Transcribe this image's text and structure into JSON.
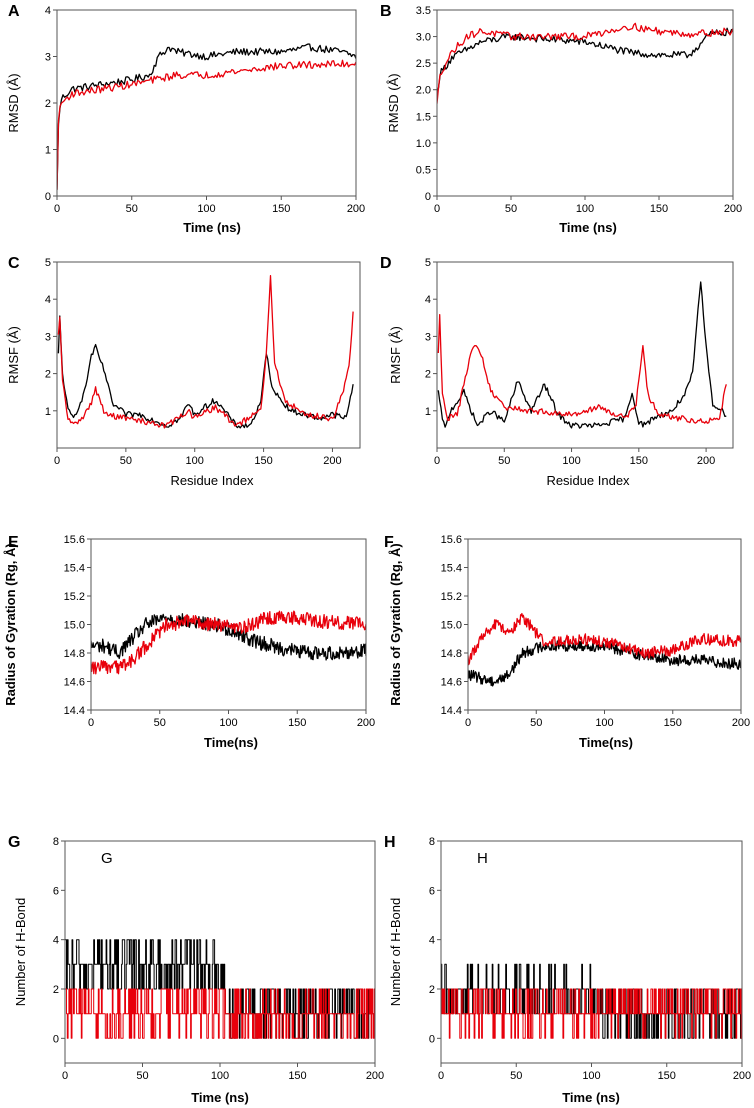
{
  "figure": {
    "colors": {
      "black": "#000000",
      "red": "#e8000b"
    }
  },
  "chart_data": [
    {
      "id": "A",
      "type": "line",
      "panel_label": "A",
      "xlabel": "Time (ns)",
      "ylabel": "RMSD (Å)",
      "xlim": [
        0,
        200
      ],
      "ylim": [
        0,
        4
      ],
      "xticks": [
        "0",
        "50",
        "100",
        "150",
        "200"
      ],
      "yticks": [
        "0",
        "1",
        "2",
        "3",
        "4"
      ],
      "series": [
        {
          "name": "black",
          "color": "#000000",
          "noise": 0.08,
          "step": 1,
          "x": [
            0,
            1,
            3,
            10,
            30,
            50,
            62,
            68,
            75,
            80,
            100,
            120,
            150,
            170,
            190,
            200
          ],
          "y": [
            0.1,
            1.6,
            2.1,
            2.3,
            2.4,
            2.5,
            2.6,
            3.0,
            3.2,
            3.1,
            3.0,
            3.1,
            3.1,
            3.2,
            3.1,
            3.0
          ]
        },
        {
          "name": "red",
          "color": "#e8000b",
          "noise": 0.08,
          "step": 1,
          "x": [
            0,
            1,
            3,
            10,
            30,
            50,
            80,
            100,
            150,
            200
          ],
          "y": [
            0.1,
            1.7,
            2.0,
            2.2,
            2.3,
            2.4,
            2.6,
            2.6,
            2.8,
            2.85
          ]
        }
      ]
    },
    {
      "id": "B",
      "type": "line",
      "panel_label": "B",
      "xlabel": "Time (ns)",
      "ylabel": "RMSD (Å)",
      "xlim": [
        0,
        200
      ],
      "ylim": [
        0,
        3.5
      ],
      "xticks": [
        "0",
        "50",
        "100",
        "150",
        "200"
      ],
      "yticks": [
        "0",
        "0.5",
        "1.0",
        "1.5",
        "2.0",
        "2.5",
        "3.0",
        "3.5"
      ],
      "series": [
        {
          "name": "black",
          "color": "#000000",
          "noise": 0.07,
          "step": 1,
          "x": [
            0,
            2,
            10,
            30,
            50,
            100,
            130,
            150,
            170,
            185,
            200
          ],
          "y": [
            1.9,
            2.3,
            2.6,
            2.9,
            3.0,
            2.9,
            2.7,
            2.65,
            2.65,
            3.05,
            3.1
          ]
        },
        {
          "name": "red",
          "color": "#e8000b",
          "noise": 0.07,
          "step": 1,
          "x": [
            0,
            2,
            10,
            20,
            30,
            50,
            100,
            130,
            150,
            170,
            200
          ],
          "y": [
            1.7,
            2.3,
            2.7,
            3.0,
            3.1,
            3.0,
            3.0,
            3.2,
            3.1,
            3.05,
            3.1
          ]
        }
      ]
    },
    {
      "id": "C",
      "type": "line",
      "panel_label": "C",
      "xlabel": "Residue Index",
      "ylabel": "RMSF (Å)",
      "xlim": [
        0,
        220
      ],
      "ylim": [
        0,
        5
      ],
      "xticks": [
        "0",
        "50",
        "100",
        "150",
        "200"
      ],
      "yticks": [
        "1",
        "2",
        "3",
        "4",
        "5"
      ],
      "yaxis_min_tick": 1,
      "series": [
        {
          "name": "black",
          "color": "#000000",
          "noise": 0.08,
          "step": 1,
          "x": [
            1,
            2,
            4,
            8,
            12,
            20,
            25,
            28,
            35,
            40,
            50,
            60,
            80,
            90,
            95,
            100,
            115,
            130,
            140,
            148,
            152,
            155,
            160,
            170,
            190,
            200,
            210,
            215
          ],
          "y": [
            2.5,
            3.5,
            2.0,
            1.0,
            0.8,
            1.5,
            2.5,
            2.7,
            2.0,
            1.2,
            0.9,
            0.9,
            0.6,
            0.8,
            1.2,
            0.9,
            1.3,
            0.6,
            0.6,
            1.2,
            2.6,
            1.8,
            1.4,
            1.0,
            0.8,
            0.9,
            0.8,
            1.7
          ]
        },
        {
          "name": "red",
          "color": "#e8000b",
          "noise": 0.08,
          "step": 1,
          "x": [
            1,
            2,
            4,
            8,
            12,
            20,
            25,
            28,
            35,
            50,
            80,
            95,
            100,
            115,
            130,
            148,
            152,
            155,
            158,
            165,
            180,
            200,
            208,
            212,
            215
          ],
          "y": [
            3.0,
            3.5,
            1.8,
            0.8,
            0.6,
            0.9,
            1.2,
            1.6,
            0.9,
            0.8,
            0.6,
            1.0,
            0.8,
            1.1,
            0.6,
            1.0,
            2.5,
            4.6,
            2.3,
            1.3,
            0.9,
            0.8,
            1.5,
            2.2,
            3.6
          ]
        }
      ]
    },
    {
      "id": "D",
      "type": "line",
      "panel_label": "D",
      "xlabel": "Residue Index",
      "ylabel": "RMSF (Å)",
      "xlim": [
        0,
        220
      ],
      "ylim": [
        0,
        5
      ],
      "xticks": [
        "0",
        "50",
        "100",
        "150",
        "200"
      ],
      "yticks": [
        "1",
        "2",
        "3",
        "4",
        "5"
      ],
      "yaxis_min_tick": 1,
      "series": [
        {
          "name": "black",
          "color": "#000000",
          "noise": 0.08,
          "step": 1,
          "x": [
            1,
            3,
            6,
            10,
            20,
            30,
            40,
            50,
            60,
            70,
            80,
            90,
            100,
            120,
            140,
            145,
            150,
            155,
            160,
            175,
            185,
            190,
            196,
            200,
            205,
            215
          ],
          "y": [
            1.5,
            1.0,
            0.5,
            1.0,
            1.5,
            0.6,
            1.0,
            0.7,
            1.8,
            1.0,
            1.7,
            0.9,
            0.6,
            0.6,
            0.8,
            1.5,
            0.7,
            0.6,
            0.8,
            1.0,
            1.5,
            2.0,
            4.5,
            2.7,
            1.2,
            0.9
          ]
        },
        {
          "name": "red",
          "color": "#e8000b",
          "noise": 0.08,
          "step": 1,
          "x": [
            1,
            2,
            4,
            8,
            15,
            25,
            28,
            33,
            40,
            50,
            70,
            100,
            120,
            140,
            148,
            153,
            157,
            165,
            180,
            200,
            210,
            215
          ],
          "y": [
            2.5,
            3.6,
            1.5,
            0.8,
            0.9,
            2.5,
            2.8,
            2.5,
            1.5,
            1.1,
            1.0,
            0.9,
            1.1,
            0.8,
            1.2,
            2.7,
            1.4,
            0.9,
            0.8,
            0.7,
            0.8,
            1.7
          ]
        }
      ]
    },
    {
      "id": "E",
      "type": "line",
      "panel_label": "E",
      "xlabel": "Time(ns)",
      "ylabel": "Radius of Gyration (Rg, Å)",
      "xlim": [
        0,
        200
      ],
      "ylim": [
        14.4,
        15.6
      ],
      "xticks": [
        "0",
        "50",
        "100",
        "150",
        "200"
      ],
      "yticks": [
        "14.4",
        "14.6",
        "14.8",
        "15.0",
        "15.2",
        "15.4",
        "15.6"
      ],
      "series": [
        {
          "name": "black",
          "color": "#000000",
          "noise": 0.05,
          "step": 0.5,
          "x": [
            0,
            10,
            20,
            30,
            40,
            55,
            70,
            90,
            105,
            120,
            140,
            160,
            180,
            200
          ],
          "y": [
            14.85,
            14.85,
            14.8,
            14.9,
            15.0,
            15.05,
            15.02,
            15.0,
            14.95,
            14.88,
            14.83,
            14.8,
            14.8,
            14.82
          ]
        },
        {
          "name": "red",
          "color": "#e8000b",
          "noise": 0.05,
          "step": 0.5,
          "x": [
            0,
            10,
            20,
            30,
            45,
            55,
            70,
            90,
            110,
            130,
            150,
            170,
            200
          ],
          "y": [
            14.7,
            14.7,
            14.7,
            14.75,
            14.9,
            15.0,
            15.02,
            15.0,
            14.98,
            15.05,
            15.05,
            15.02,
            15.0
          ]
        }
      ]
    },
    {
      "id": "F",
      "type": "line",
      "panel_label": "F",
      "xlabel": "Time(ns)",
      "ylabel": "Radius of Gyration (Rg, Å)",
      "xlim": [
        0,
        200
      ],
      "ylim": [
        14.4,
        15.6
      ],
      "xticks": [
        "0",
        "50",
        "100",
        "150",
        "200"
      ],
      "yticks": [
        "14.4",
        "14.6",
        "14.8",
        "15.0",
        "15.2",
        "15.4",
        "15.6"
      ],
      "series": [
        {
          "name": "black",
          "color": "#000000",
          "noise": 0.04,
          "step": 0.5,
          "x": [
            0,
            10,
            20,
            30,
            40,
            55,
            80,
            100,
            130,
            150,
            170,
            200
          ],
          "y": [
            14.65,
            14.62,
            14.6,
            14.65,
            14.8,
            14.85,
            14.85,
            14.85,
            14.78,
            14.75,
            14.75,
            14.72
          ]
        },
        {
          "name": "red",
          "color": "#e8000b",
          "noise": 0.04,
          "step": 0.5,
          "x": [
            0,
            10,
            20,
            30,
            40,
            45,
            55,
            80,
            100,
            130,
            150,
            170,
            200
          ],
          "y": [
            14.75,
            14.9,
            15.0,
            14.95,
            15.05,
            15.0,
            14.88,
            14.9,
            14.88,
            14.8,
            14.82,
            14.9,
            14.88
          ]
        }
      ]
    },
    {
      "id": "G",
      "type": "line",
      "panel_label": "G",
      "inset_label": "G",
      "xlabel": "Time (ns)",
      "ylabel": "Number of H-Bond",
      "xlim": [
        0,
        200
      ],
      "ylim": [
        -1,
        8
      ],
      "xticks": [
        "0",
        "50",
        "100",
        "150",
        "200"
      ],
      "yticks": [
        "0",
        "2",
        "4",
        "6",
        "8"
      ],
      "yaxis_min_tick": 0,
      "series": [
        {
          "name": "black",
          "color": "#000000",
          "noise": 1.2,
          "step": 0.5,
          "integer": true,
          "x": [
            0,
            100,
            105,
            200
          ],
          "y": [
            2.8,
            2.8,
            1.2,
            1.2
          ]
        },
        {
          "name": "red",
          "color": "#e8000b",
          "noise": 1.1,
          "step": 0.5,
          "integer": true,
          "x": [
            0,
            100,
            105,
            200
          ],
          "y": [
            1.2,
            1.2,
            0.9,
            0.9
          ]
        }
      ]
    },
    {
      "id": "H",
      "type": "line",
      "panel_label": "H",
      "inset_label": "H",
      "xlabel": "Time (ns)",
      "ylabel": "Number of H-Bond",
      "xlim": [
        0,
        200
      ],
      "ylim": [
        -1,
        8
      ],
      "xticks": [
        "0",
        "50",
        "100",
        "150",
        "200"
      ],
      "yticks": [
        "0",
        "2",
        "4",
        "6",
        "8"
      ],
      "yaxis_min_tick": 0,
      "series": [
        {
          "name": "black",
          "color": "#000000",
          "noise": 1.1,
          "step": 0.5,
          "integer": true,
          "x": [
            0,
            100,
            110,
            200
          ],
          "y": [
            1.8,
            1.6,
            1.0,
            1.0
          ]
        },
        {
          "name": "red",
          "color": "#e8000b",
          "noise": 1.0,
          "step": 0.5,
          "integer": true,
          "x": [
            0,
            100,
            110,
            200
          ],
          "y": [
            1.2,
            1.0,
            1.3,
            1.3
          ]
        }
      ]
    }
  ]
}
